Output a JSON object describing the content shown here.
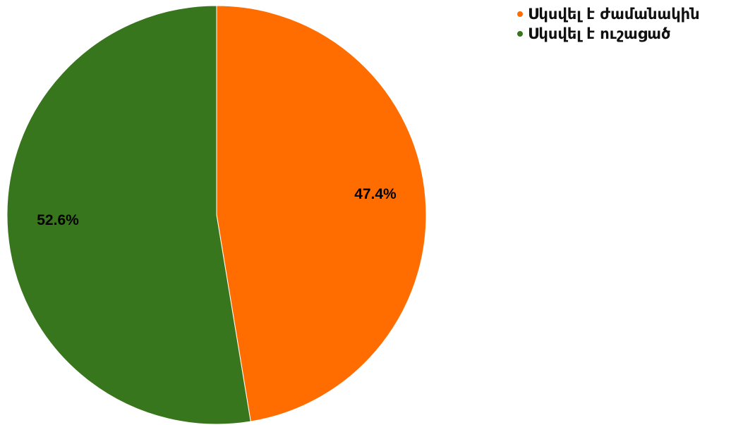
{
  "chart_data": {
    "type": "pie",
    "title": "",
    "series": [
      {
        "name": "Սկսվել է ժամանակին",
        "value": 47.4,
        "label": "47.4%",
        "color": "#FF6D00"
      },
      {
        "name": "Սկսվել է ուշացած",
        "value": 52.6,
        "label": "52.6%",
        "color": "#38761D"
      }
    ],
    "legend_position": "top-right",
    "start_angle": "12 o'clock, clockwise"
  }
}
